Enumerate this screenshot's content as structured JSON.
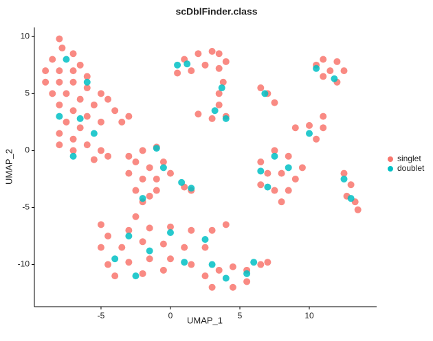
{
  "chart_data": {
    "type": "scatter",
    "title": "scDblFinder.class",
    "x_label": "UMAP_1",
    "y_label": "UMAP_2",
    "xlim": [
      -9.8,
      14.85
    ],
    "ylim": [
      -13.7,
      10.8
    ],
    "xticks": [
      -5,
      0,
      5,
      10
    ],
    "yticks": [
      -10,
      -5,
      0,
      5,
      10
    ],
    "series": [
      {
        "name": "singlet",
        "color": "#F8766D",
        "x": [
          -8,
          -7.8,
          -8.5,
          -7,
          -9,
          -8,
          -7,
          -6.5,
          -6,
          -9,
          -8,
          -7,
          -6,
          -5,
          -4.5,
          -8.5,
          -7.5,
          -6.5,
          -5.5,
          -4,
          -3,
          -8,
          -7,
          -6,
          -5,
          -3.5,
          -7.5,
          -6.5,
          -8,
          -7,
          -8,
          -7,
          -6,
          -5,
          -4.5,
          -5.5,
          -3,
          -2,
          -1,
          -2.5,
          -1.5,
          -0.5,
          -3,
          -2,
          -1,
          0,
          -2.5,
          -1.5,
          -2,
          -1,
          1,
          1.5,
          1,
          2,
          3,
          3.5,
          2.5,
          1.5,
          3.5,
          4,
          3.8,
          3.5,
          3.5,
          2,
          3,
          4,
          0.5,
          6.5,
          7,
          7.5,
          10.5,
          11,
          12,
          11.5,
          12.5,
          11,
          12,
          9,
          10,
          11,
          10.5,
          11,
          6.5,
          7.5,
          8.5,
          9.5,
          7,
          8,
          9,
          6.5,
          7.5,
          8.5,
          8,
          12.5,
          13,
          12.7,
          13.3,
          13.5,
          -4.5,
          -3,
          -1.5,
          0,
          1.5,
          3,
          4,
          -5,
          -3.5,
          -2,
          -0.5,
          1,
          2.5,
          -4.5,
          -3,
          -1.5,
          0,
          1.5,
          -4,
          -2,
          -0.5,
          2.5,
          3.5,
          4.5,
          5.5,
          6.5,
          7,
          3,
          4.5,
          5.5,
          -5,
          -2.5
        ],
        "values": [
          9.8,
          9,
          8,
          8.5,
          7,
          7,
          7,
          7.5,
          6.5,
          6,
          6,
          6,
          5.5,
          5,
          4.5,
          5,
          5,
          4.5,
          4,
          3.5,
          3,
          4,
          3.5,
          3,
          2.5,
          2.5,
          2.5,
          2,
          1.5,
          1,
          0.5,
          0,
          0.5,
          0,
          -0.5,
          -0.8,
          -0.5,
          0,
          0.3,
          -1,
          -1.5,
          -1,
          -2,
          -2.5,
          -2.5,
          -2,
          -3.5,
          -4,
          -4.5,
          -3.5,
          -3.2,
          -3.5,
          8,
          8.5,
          8.7,
          8.5,
          7.5,
          7,
          7.2,
          7.8,
          6,
          5,
          4,
          3.2,
          2.8,
          3,
          6.8,
          5.5,
          5,
          4.2,
          7.5,
          8,
          7.8,
          7,
          7,
          6.5,
          6,
          2,
          2.2,
          2,
          1,
          3,
          -1,
          0,
          -0.5,
          -1.5,
          -2,
          -2,
          -2.5,
          -3,
          -3.5,
          -3.5,
          -4.5,
          -2,
          -3,
          -4,
          -4.5,
          -5.2,
          -7.5,
          -7,
          -6.8,
          -6.7,
          -7,
          -7,
          -6.5,
          -8.5,
          -8.5,
          -8,
          -8.2,
          -8.5,
          -8.5,
          -10,
          -9.8,
          -9.5,
          -9.5,
          -10,
          -11,
          -10.8,
          -10.5,
          -11,
          -10.5,
          -10.2,
          -10.5,
          -10,
          -9.8,
          -12,
          -12,
          -11.5,
          -6.5,
          -5.8
        ]
      },
      {
        "name": "doublet",
        "color": "#00BFC4",
        "x": [
          -7.5,
          -6,
          -8,
          -5.5,
          -7,
          -6.5,
          -1,
          -0.5,
          1.5,
          -2,
          0.8,
          0.5,
          1.2,
          3.7,
          3.2,
          4,
          6.8,
          10.5,
          11.8,
          10,
          7.5,
          8.5,
          7,
          6.5,
          12.5,
          13,
          -3,
          0,
          2.5,
          -4,
          1,
          3,
          4,
          5.5,
          -2.5,
          -1.5,
          6
        ],
        "values": [
          8,
          6,
          3,
          1.5,
          -0.5,
          2.8,
          0.2,
          -1.5,
          -3.3,
          -4.2,
          -2.8,
          7.5,
          7.6,
          5.5,
          3.5,
          2.8,
          5,
          7.2,
          6.3,
          1.5,
          -0.5,
          -1.5,
          -3.2,
          -1.8,
          -2.5,
          -4.2,
          -7.5,
          -7.2,
          -7.8,
          -9.5,
          -9.8,
          -10,
          -11.2,
          -10.8,
          -11,
          -8.8,
          -9.8
        ]
      }
    ]
  }
}
